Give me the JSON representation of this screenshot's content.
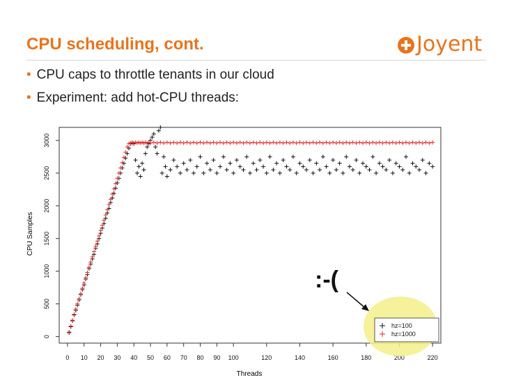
{
  "slide": {
    "title": "CPU scheduling, cont.",
    "bullets": [
      "CPU caps to throttle tenants in our cloud",
      "Experiment: add hot-CPU threads:"
    ]
  },
  "logo": {
    "text": "Joyent",
    "color": "#e8741d"
  },
  "annotation": {
    "text": ":-("
  },
  "colors": {
    "accent": "#e8741d",
    "series_black": "#111111",
    "series_red": "#e02a2a",
    "highlight": "#f5ee8a"
  },
  "chart_data": {
    "type": "scatter",
    "marker": "plus",
    "xlabel": "Threads",
    "ylabel": "CPU Samples",
    "xlim": [
      -5,
      225
    ],
    "ylim": [
      -100,
      3200
    ],
    "xticks": [
      0,
      10,
      20,
      30,
      40,
      50,
      60,
      70,
      80,
      90,
      100,
      120,
      140,
      160,
      180,
      200,
      220
    ],
    "yticks": [
      0,
      500,
      1000,
      1500,
      2000,
      2500,
      3000
    ],
    "legend": {
      "position": "bottom-right",
      "entries": [
        "hz=100",
        "hz=1000"
      ]
    },
    "series": [
      {
        "name": "hz=100",
        "color": "#111111",
        "points": [
          [
            1,
            60
          ],
          [
            2,
            150
          ],
          [
            3,
            240
          ],
          [
            4,
            330
          ],
          [
            5,
            400
          ],
          [
            6,
            480
          ],
          [
            7,
            560
          ],
          [
            8,
            640
          ],
          [
            9,
            720
          ],
          [
            10,
            790
          ],
          [
            11,
            880
          ],
          [
            12,
            950
          ],
          [
            13,
            1040
          ],
          [
            14,
            1110
          ],
          [
            15,
            1190
          ],
          [
            16,
            1260
          ],
          [
            17,
            1350
          ],
          [
            18,
            1420
          ],
          [
            19,
            1500
          ],
          [
            20,
            1580
          ],
          [
            21,
            1660
          ],
          [
            22,
            1730
          ],
          [
            23,
            1810
          ],
          [
            24,
            1890
          ],
          [
            25,
            1960
          ],
          [
            26,
            2050
          ],
          [
            27,
            2120
          ],
          [
            28,
            2190
          ],
          [
            29,
            2270
          ],
          [
            30,
            2350
          ],
          [
            31,
            2420
          ],
          [
            32,
            2500
          ],
          [
            33,
            2580
          ],
          [
            34,
            2650
          ],
          [
            35,
            2730
          ],
          [
            36,
            2800
          ],
          [
            37,
            2880
          ],
          [
            38,
            2950
          ],
          [
            39,
            2960
          ],
          [
            40,
            2950
          ],
          [
            41,
            2700
          ],
          [
            42,
            2500
          ],
          [
            43,
            2600
          ],
          [
            44,
            2450
          ],
          [
            45,
            2650
          ],
          [
            46,
            2550
          ],
          [
            47,
            2800
          ],
          [
            48,
            2900
          ],
          [
            49,
            2950
          ],
          [
            50,
            3000
          ],
          [
            51,
            3050
          ],
          [
            52,
            3100
          ],
          [
            53,
            2900
          ],
          [
            54,
            2800
          ],
          [
            55,
            3150
          ],
          [
            56,
            3200
          ],
          [
            57,
            2500
          ],
          [
            58,
            2750
          ],
          [
            59,
            2600
          ],
          [
            60,
            2450
          ],
          [
            62,
            2550
          ],
          [
            64,
            2700
          ],
          [
            66,
            2600
          ],
          [
            68,
            2500
          ],
          [
            70,
            2650
          ],
          [
            72,
            2550
          ],
          [
            74,
            2700
          ],
          [
            76,
            2500
          ],
          [
            78,
            2600
          ],
          [
            80,
            2750
          ],
          [
            82,
            2500
          ],
          [
            84,
            2650
          ],
          [
            86,
            2550
          ],
          [
            88,
            2700
          ],
          [
            90,
            2500
          ],
          [
            92,
            2600
          ],
          [
            94,
            2750
          ],
          [
            96,
            2550
          ],
          [
            98,
            2650
          ],
          [
            100,
            2500
          ],
          [
            102,
            2700
          ],
          [
            104,
            2600
          ],
          [
            106,
            2550
          ],
          [
            108,
            2750
          ],
          [
            110,
            2500
          ],
          [
            112,
            2650
          ],
          [
            114,
            2550
          ],
          [
            116,
            2700
          ],
          [
            118,
            2600
          ],
          [
            120,
            2500
          ],
          [
            122,
            2750
          ],
          [
            124,
            2550
          ],
          [
            126,
            2650
          ],
          [
            128,
            2500
          ],
          [
            130,
            2700
          ],
          [
            132,
            2600
          ],
          [
            134,
            2550
          ],
          [
            136,
            2750
          ],
          [
            138,
            2500
          ],
          [
            140,
            2650
          ],
          [
            142,
            2600
          ],
          [
            144,
            2550
          ],
          [
            146,
            2700
          ],
          [
            148,
            2500
          ],
          [
            150,
            2650
          ],
          [
            152,
            2550
          ],
          [
            154,
            2750
          ],
          [
            156,
            2600
          ],
          [
            158,
            2500
          ],
          [
            160,
            2700
          ],
          [
            162,
            2550
          ],
          [
            164,
            2650
          ],
          [
            166,
            2500
          ],
          [
            168,
            2750
          ],
          [
            170,
            2600
          ],
          [
            172,
            2550
          ],
          [
            174,
            2700
          ],
          [
            176,
            2500
          ],
          [
            178,
            2650
          ],
          [
            180,
            2600
          ],
          [
            182,
            2550
          ],
          [
            184,
            2750
          ],
          [
            186,
            2500
          ],
          [
            188,
            2650
          ],
          [
            190,
            2600
          ],
          [
            192,
            2550
          ],
          [
            194,
            2700
          ],
          [
            196,
            2500
          ],
          [
            198,
            2650
          ],
          [
            200,
            2600
          ],
          [
            202,
            2550
          ],
          [
            204,
            2750
          ],
          [
            206,
            2500
          ],
          [
            208,
            2650
          ],
          [
            210,
            2600
          ],
          [
            212,
            2550
          ],
          [
            214,
            2700
          ],
          [
            216,
            2500
          ],
          [
            218,
            2650
          ],
          [
            220,
            2600
          ]
        ]
      },
      {
        "name": "hz=1000",
        "color": "#e02a2a",
        "points": [
          [
            1,
            70
          ],
          [
            2,
            160
          ],
          [
            3,
            250
          ],
          [
            4,
            340
          ],
          [
            5,
            420
          ],
          [
            6,
            500
          ],
          [
            7,
            580
          ],
          [
            8,
            660
          ],
          [
            9,
            740
          ],
          [
            10,
            820
          ],
          [
            11,
            900
          ],
          [
            12,
            980
          ],
          [
            13,
            1060
          ],
          [
            14,
            1140
          ],
          [
            15,
            1220
          ],
          [
            16,
            1300
          ],
          [
            17,
            1380
          ],
          [
            18,
            1460
          ],
          [
            19,
            1540
          ],
          [
            20,
            1620
          ],
          [
            21,
            1700
          ],
          [
            22,
            1780
          ],
          [
            23,
            1860
          ],
          [
            24,
            1940
          ],
          [
            25,
            2020
          ],
          [
            26,
            2100
          ],
          [
            27,
            2180
          ],
          [
            28,
            2260
          ],
          [
            29,
            2340
          ],
          [
            30,
            2420
          ],
          [
            31,
            2500
          ],
          [
            32,
            2580
          ],
          [
            33,
            2660
          ],
          [
            34,
            2740
          ],
          [
            35,
            2820
          ],
          [
            36,
            2900
          ],
          [
            37,
            2950
          ],
          [
            38,
            2960
          ],
          [
            39,
            2970
          ],
          [
            40,
            2960
          ],
          [
            41,
            2970
          ],
          [
            42,
            2960
          ],
          [
            43,
            2970
          ],
          [
            44,
            2960
          ],
          [
            45,
            2970
          ],
          [
            46,
            2960
          ],
          [
            47,
            2970
          ],
          [
            48,
            2960
          ],
          [
            49,
            2970
          ],
          [
            50,
            2960
          ],
          [
            52,
            2970
          ],
          [
            54,
            2960
          ],
          [
            56,
            2970
          ],
          [
            58,
            2960
          ],
          [
            60,
            2970
          ],
          [
            62,
            2960
          ],
          [
            64,
            2970
          ],
          [
            66,
            2960
          ],
          [
            68,
            2970
          ],
          [
            70,
            2960
          ],
          [
            72,
            2970
          ],
          [
            74,
            2960
          ],
          [
            76,
            2970
          ],
          [
            78,
            2960
          ],
          [
            80,
            2970
          ],
          [
            82,
            2960
          ],
          [
            84,
            2970
          ],
          [
            86,
            2960
          ],
          [
            88,
            2970
          ],
          [
            90,
            2960
          ],
          [
            92,
            2970
          ],
          [
            94,
            2960
          ],
          [
            96,
            2970
          ],
          [
            98,
            2960
          ],
          [
            100,
            2970
          ],
          [
            102,
            2960
          ],
          [
            104,
            2970
          ],
          [
            106,
            2960
          ],
          [
            108,
            2970
          ],
          [
            110,
            2960
          ],
          [
            112,
            2970
          ],
          [
            114,
            2960
          ],
          [
            116,
            2970
          ],
          [
            118,
            2960
          ],
          [
            120,
            2970
          ],
          [
            122,
            2960
          ],
          [
            124,
            2970
          ],
          [
            126,
            2960
          ],
          [
            128,
            2970
          ],
          [
            130,
            2960
          ],
          [
            132,
            2970
          ],
          [
            134,
            2960
          ],
          [
            136,
            2970
          ],
          [
            138,
            2960
          ],
          [
            140,
            2970
          ],
          [
            142,
            2960
          ],
          [
            144,
            2970
          ],
          [
            146,
            2960
          ],
          [
            148,
            2970
          ],
          [
            150,
            2960
          ],
          [
            152,
            2970
          ],
          [
            154,
            2960
          ],
          [
            156,
            2970
          ],
          [
            158,
            2960
          ],
          [
            160,
            2970
          ],
          [
            162,
            2960
          ],
          [
            164,
            2970
          ],
          [
            166,
            2960
          ],
          [
            168,
            2970
          ],
          [
            170,
            2960
          ],
          [
            172,
            2970
          ],
          [
            174,
            2960
          ],
          [
            176,
            2970
          ],
          [
            178,
            2960
          ],
          [
            180,
            2970
          ],
          [
            182,
            2960
          ],
          [
            184,
            2970
          ],
          [
            186,
            2960
          ],
          [
            188,
            2970
          ],
          [
            190,
            2960
          ],
          [
            192,
            2970
          ],
          [
            194,
            2960
          ],
          [
            196,
            2970
          ],
          [
            198,
            2960
          ],
          [
            200,
            2970
          ],
          [
            202,
            2960
          ],
          [
            204,
            2970
          ],
          [
            206,
            2960
          ],
          [
            208,
            2970
          ],
          [
            210,
            2960
          ],
          [
            212,
            2970
          ],
          [
            214,
            2960
          ],
          [
            216,
            2970
          ],
          [
            218,
            2960
          ],
          [
            220,
            2970
          ]
        ]
      }
    ]
  }
}
